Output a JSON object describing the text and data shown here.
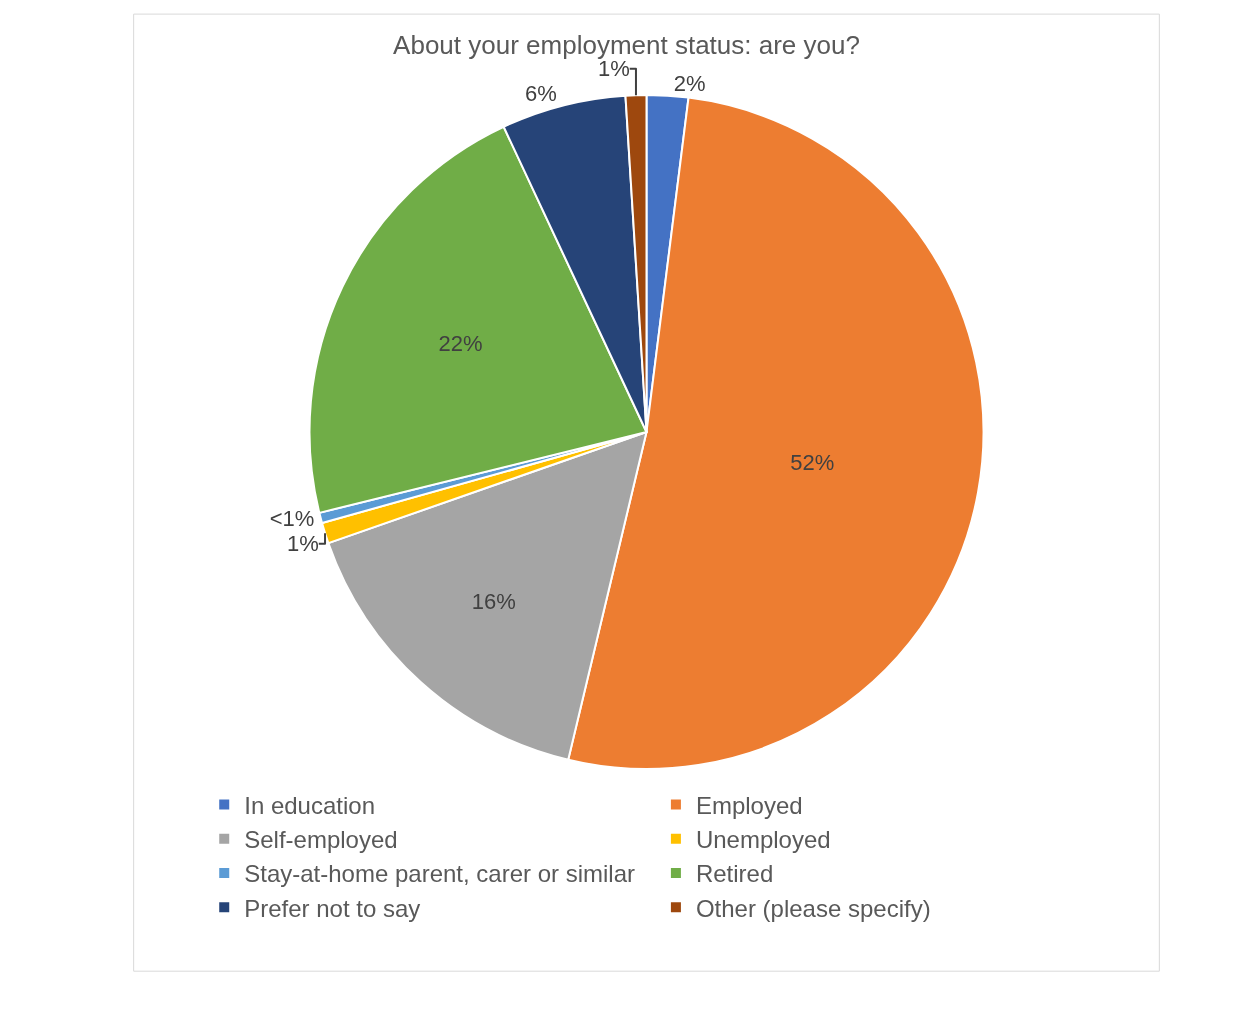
{
  "chart_data": {
    "type": "pie",
    "title": "About your employment status: are you?",
    "categories": [
      "In education",
      "Employed",
      "Self-employed",
      "Unemployed",
      "Stay-at-home parent, carer or similar",
      "Retired",
      "Prefer not to say",
      "Other (please specify)"
    ],
    "values": [
      2,
      52,
      16,
      1,
      0.5,
      22,
      6,
      1
    ],
    "value_labels": [
      "2%",
      "52%",
      "16%",
      "1%",
      "<1%",
      "22%",
      "6%",
      "1%"
    ],
    "colors": [
      "#4472c4",
      "#ed7d31",
      "#a5a5a5",
      "#ffc000",
      "#5b9bd5",
      "#70ad47",
      "#264478",
      "#9e480e"
    ],
    "legend": "bottom"
  }
}
